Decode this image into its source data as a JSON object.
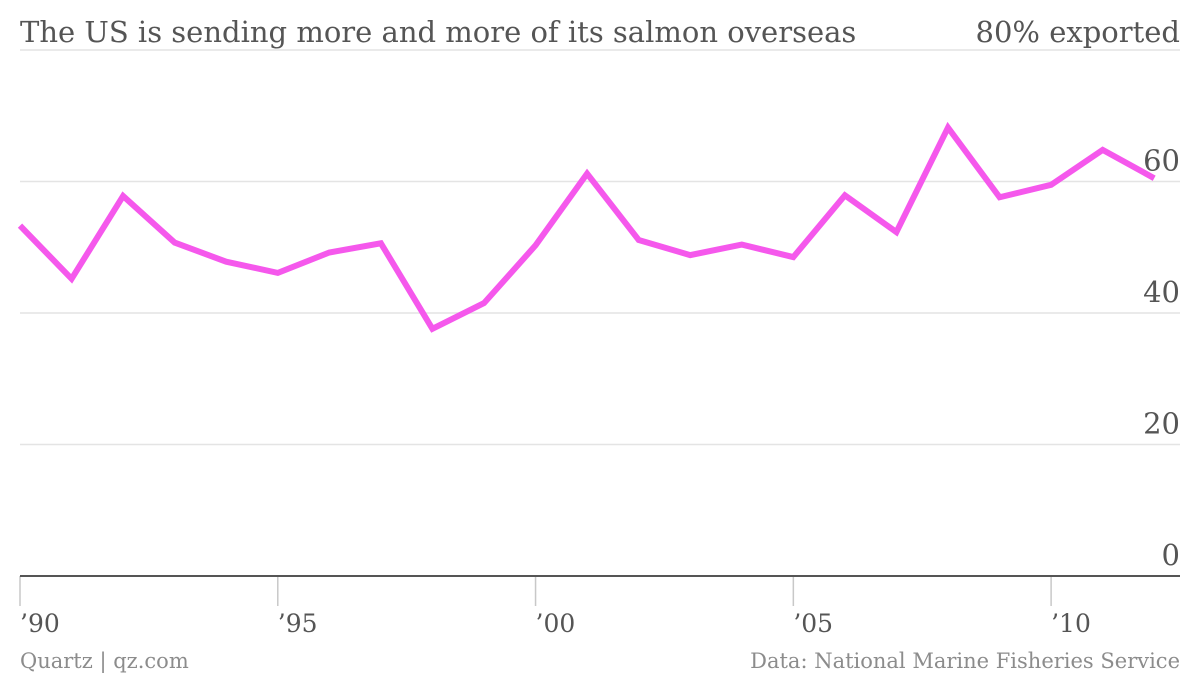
{
  "chart_data": {
    "type": "line",
    "title": "The US is sending more and more of its salmon overseas",
    "y_top_label": "80% exported",
    "ylim": [
      0,
      80
    ],
    "y_ticks": [
      0,
      20,
      40,
      60
    ],
    "y_tick_labels": [
      "0",
      "20",
      "40",
      "60"
    ],
    "xlim": [
      1990,
      2012.5
    ],
    "x_ticks": [
      1990,
      1995,
      2000,
      2005,
      2010
    ],
    "x_tick_labels": [
      "’90",
      "’95",
      "’00",
      "’05",
      "’10"
    ],
    "grid": true,
    "series": [
      {
        "x": [
          1990,
          1991,
          1992,
          1993,
          1994,
          1995,
          1996,
          1997,
          1998,
          1999,
          2000,
          2001,
          2002,
          2003,
          2004,
          2005,
          2006,
          2007,
          2008,
          2009,
          2010,
          2011,
          2012
        ],
        "values": [
          53.3,
          45.2,
          57.8,
          50.7,
          47.8,
          46.1,
          49.2,
          50.6,
          37.6,
          41.5,
          50.3,
          61.2,
          51.1,
          48.8,
          50.4,
          48.5,
          57.9,
          52.3,
          68.2,
          57.6,
          59.5,
          64.8,
          60.5
        ]
      }
    ],
    "colors": {
      "line": "#f558ec"
    }
  },
  "footer": {
    "left": "Quartz | qz.com",
    "right": "Data: National Marine Fisheries Service"
  }
}
